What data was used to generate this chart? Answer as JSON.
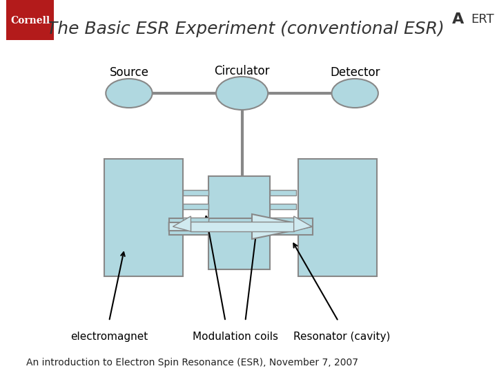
{
  "title": "The Basic ESR Experiment (conventional ESR)",
  "title_italic": true,
  "title_fontsize": 18,
  "title_color": "#333333",
  "bg_color": "#ffffff",
  "component_fill": "#b0d8e0",
  "component_edge": "#888888",
  "line_color": "#888888",
  "arrow_color": "#000000",
  "labels": {
    "source": "Source",
    "circulator": "Circulator",
    "detector": "Detector",
    "electromagnet": "electromagnet",
    "modulation": "Modulation coils",
    "resonator": "Resonator (cavity)"
  },
  "footer": "An introduction to Electron Spin Resonance (ESR), November 7, 2007",
  "footer_fontsize": 10,
  "label_fontsize": 12
}
